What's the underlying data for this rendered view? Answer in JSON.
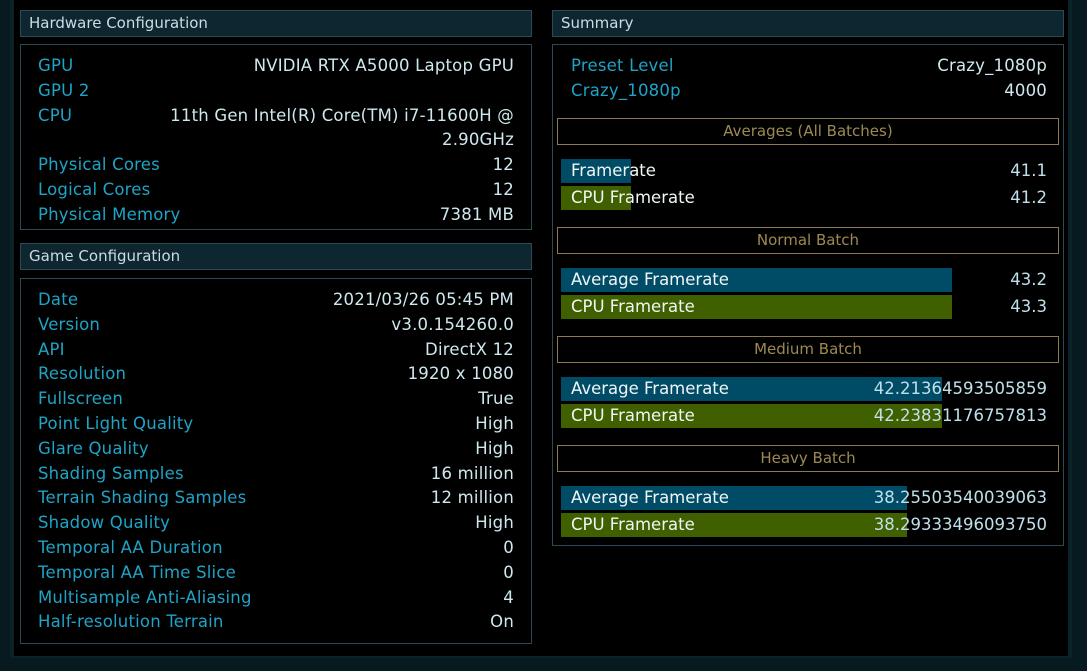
{
  "colors": {
    "label": "#1ea4c6",
    "value": "#cfe8ee",
    "bar_blue": "#004c66",
    "bar_green": "#406000",
    "section_border": "#8a7a4e"
  },
  "hardware": {
    "title": "Hardware Configuration",
    "rows": [
      {
        "label": "GPU",
        "value": "NVIDIA RTX A5000 Laptop GPU"
      },
      {
        "label": "GPU 2",
        "value": ""
      },
      {
        "label": "CPU",
        "value": "11th Gen Intel(R) Core(TM) i7-11600H @",
        "value2": "2.90GHz"
      },
      {
        "label": "Physical Cores",
        "value": "12"
      },
      {
        "label": "Logical Cores",
        "value": "12"
      },
      {
        "label": "Physical Memory",
        "value": "7381 MB"
      }
    ]
  },
  "game": {
    "title": "Game Configuration",
    "rows": [
      {
        "label": "Date",
        "value": "2021/03/26 05:45 PM"
      },
      {
        "label": "Version",
        "value": "v3.0.154260.0"
      },
      {
        "label": "API",
        "value": "DirectX 12"
      },
      {
        "label": "Resolution",
        "value": "1920 x 1080"
      },
      {
        "label": "Fullscreen",
        "value": "True"
      },
      {
        "label": "Point Light Quality",
        "value": "High"
      },
      {
        "label": "Glare Quality",
        "value": "High"
      },
      {
        "label": "Shading Samples",
        "value": "16 million"
      },
      {
        "label": "Terrain Shading Samples",
        "value": "12 million"
      },
      {
        "label": "Shadow Quality",
        "value": "High"
      },
      {
        "label": "Temporal AA Duration",
        "value": "0"
      },
      {
        "label": "Temporal AA Time Slice",
        "value": "0"
      },
      {
        "label": "Multisample Anti-Aliasing",
        "value": "4"
      },
      {
        "label": "Half-resolution Terrain",
        "value": "On"
      }
    ]
  },
  "summary": {
    "title": "Summary",
    "rows": [
      {
        "label": "Preset Level",
        "value": "Crazy_1080p"
      },
      {
        "label": "Crazy_1080p",
        "value": "4000"
      }
    ],
    "sections": [
      {
        "title": "Averages (All Batches)",
        "bars": [
          {
            "label": "Framerate",
            "value": "41.1",
            "fill_pct": 14.4,
            "color": "blue"
          },
          {
            "label": "CPU Framerate",
            "value": "41.2",
            "fill_pct": 14.4,
            "color": "green"
          }
        ]
      },
      {
        "title": "Normal Batch",
        "bars": [
          {
            "label": "Average Framerate",
            "value": "43.2",
            "fill_pct": 80.5,
            "color": "blue"
          },
          {
            "label": "CPU Framerate",
            "value": "43.3",
            "fill_pct": 80.5,
            "color": "green"
          }
        ]
      },
      {
        "title": "Medium Batch",
        "bars": [
          {
            "label": "Average Framerate",
            "value": "42.21364593505859",
            "fill_pct": 78.4,
            "color": "blue"
          },
          {
            "label": "CPU Framerate",
            "value": "42.23831176757813",
            "fill_pct": 78.4,
            "color": "green"
          }
        ]
      },
      {
        "title": "Heavy Batch",
        "bars": [
          {
            "label": "Average Framerate",
            "value": "38.25503540039063",
            "fill_pct": 71.2,
            "color": "blue"
          },
          {
            "label": "CPU Framerate",
            "value": "38.29333496093750",
            "fill_pct": 71.2,
            "color": "green"
          }
        ]
      }
    ]
  }
}
